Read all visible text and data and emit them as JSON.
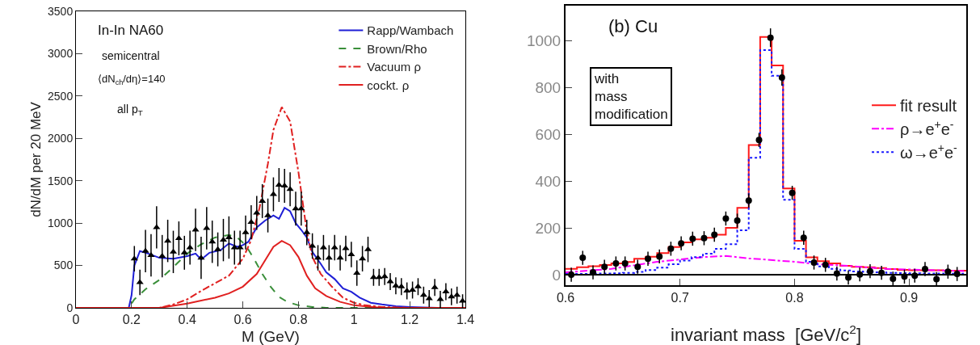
{
  "chart_data": [
    {
      "type": "line",
      "xlabel": "M (GeV)",
      "ylabel": "dN/dM per 20 MeV",
      "annotations": [
        "In-In NA60",
        "semicentral",
        "⟨dN$_{ch}$/dη⟩=140",
        "all p$_{T}$"
      ],
      "xlim": [
        0,
        1.4
      ],
      "ylim": [
        0,
        3500
      ],
      "xticks": [
        0,
        0.2,
        0.4,
        0.6,
        0.8,
        1,
        1.2,
        1.4
      ],
      "yticks": [
        0,
        500,
        1000,
        1500,
        2000,
        2500,
        3000,
        3500
      ],
      "grid": false,
      "legend": "top right",
      "series": [
        {
          "name": "Rapp/Wambach",
          "color": "#1f1fd6",
          "line_style": "solid",
          "x": [
            0,
            0.19,
            0.2,
            0.21,
            0.23,
            0.26,
            0.3,
            0.35,
            0.4,
            0.43,
            0.45,
            0.48,
            0.52,
            0.55,
            0.58,
            0.6,
            0.62,
            0.65,
            0.68,
            0.71,
            0.73,
            0.75,
            0.77,
            0.79,
            0.81,
            0.83,
            0.85,
            0.88,
            0.9,
            0.93,
            0.96,
            0.99,
            1.02,
            1.06,
            1.1,
            1.15,
            1.2,
            1.3,
            1.4
          ],
          "values": [
            0,
            0,
            150,
            500,
            670,
            640,
            590,
            580,
            610,
            640,
            570,
            650,
            680,
            760,
            720,
            740,
            780,
            950,
            1030,
            1090,
            1050,
            1180,
            1140,
            1000,
            920,
            830,
            660,
            520,
            420,
            340,
            230,
            190,
            120,
            60,
            40,
            20,
            10,
            0,
            0
          ]
        },
        {
          "name": "Brown/Rho",
          "color": "#3a8f3a",
          "line_style": "dashed",
          "x": [
            0,
            0.19,
            0.21,
            0.25,
            0.3,
            0.35,
            0.4,
            0.45,
            0.5,
            0.55,
            0.58,
            0.61,
            0.64,
            0.67,
            0.7,
            0.73,
            0.76,
            0.8,
            0.85,
            0.9,
            1.4
          ],
          "values": [
            0,
            0,
            100,
            220,
            330,
            480,
            640,
            750,
            830,
            860,
            830,
            740,
            580,
            400,
            250,
            130,
            70,
            30,
            10,
            0,
            0
          ]
        },
        {
          "name": "Vacuum ρ",
          "color": "#e02020",
          "line_style": "dashdot",
          "x": [
            0,
            0.3,
            0.35,
            0.4,
            0.45,
            0.5,
            0.55,
            0.6,
            0.63,
            0.66,
            0.69,
            0.71,
            0.74,
            0.77,
            0.8,
            0.83,
            0.85,
            0.88,
            0.92,
            0.96,
            1.0,
            1.04,
            1.1,
            1.2,
            1.4
          ],
          "values": [
            0,
            0,
            40,
            100,
            200,
            290,
            380,
            580,
            800,
            1180,
            1700,
            2100,
            2370,
            2200,
            1600,
            900,
            600,
            400,
            250,
            120,
            60,
            30,
            10,
            0,
            0
          ]
        },
        {
          "name": "cockt. ρ",
          "color": "#e02020",
          "line_style": "solid",
          "x": [
            0,
            0.3,
            0.4,
            0.5,
            0.55,
            0.6,
            0.65,
            0.68,
            0.71,
            0.74,
            0.77,
            0.8,
            0.83,
            0.86,
            0.9,
            0.95,
            1.0,
            1.1,
            1.2,
            1.4
          ],
          "values": [
            0,
            0,
            50,
            120,
            170,
            250,
            400,
            560,
            720,
            790,
            740,
            600,
            380,
            230,
            140,
            70,
            30,
            0,
            0,
            0
          ]
        },
        {
          "type": "scatter",
          "color": "#000000",
          "marker": "triangle",
          "x": [
            0.21,
            0.23,
            0.25,
            0.27,
            0.29,
            0.31,
            0.33,
            0.35,
            0.37,
            0.39,
            0.41,
            0.43,
            0.45,
            0.47,
            0.49,
            0.51,
            0.53,
            0.55,
            0.57,
            0.59,
            0.61,
            0.63,
            0.65,
            0.67,
            0.69,
            0.71,
            0.73,
            0.75,
            0.77,
            0.79,
            0.81,
            0.83,
            0.85,
            0.87,
            0.89,
            0.91,
            0.93,
            0.95,
            0.97,
            0.99,
            1.01,
            1.03,
            1.05,
            1.07,
            1.09,
            1.11,
            1.13,
            1.15,
            1.17,
            1.19,
            1.21,
            1.23,
            1.25,
            1.27,
            1.29,
            1.31,
            1.33,
            1.35,
            1.37,
            1.39
          ],
          "values": [
            580,
            300,
            670,
            620,
            950,
            610,
            790,
            660,
            820,
            650,
            710,
            920,
            590,
            940,
            780,
            690,
            800,
            830,
            710,
            710,
            890,
            1010,
            1120,
            1260,
            1090,
            1340,
            1450,
            1440,
            1400,
            1170,
            1170,
            890,
            730,
            590,
            710,
            590,
            710,
            590,
            700,
            630,
            410,
            580,
            690,
            360,
            360,
            370,
            310,
            260,
            250,
            200,
            210,
            250,
            150,
            110,
            240,
            100,
            190,
            130,
            150,
            80
          ],
          "errors": [
            150,
            150,
            250,
            250,
            250,
            250,
            250,
            250,
            200,
            200,
            200,
            250,
            250,
            250,
            250,
            200,
            250,
            250,
            200,
            200,
            200,
            200,
            200,
            200,
            200,
            200,
            200,
            200,
            200,
            200,
            200,
            150,
            150,
            150,
            150,
            150,
            150,
            150,
            150,
            150,
            150,
            150,
            150,
            100,
            100,
            100,
            100,
            100,
            100,
            100,
            100,
            100,
            100,
            100,
            100,
            100,
            100,
            100,
            100,
            80
          ]
        }
      ]
    },
    {
      "type": "step",
      "xlabel": "invariant mass  [GeV/c$^{2}$]",
      "annotations": [
        "(b) Cu",
        "with mass modification"
      ],
      "xlim": [
        0.6,
        0.95
      ],
      "ylim": [
        -45,
        1150
      ],
      "xticks": [
        0.6,
        0.7,
        0.8,
        0.9
      ],
      "yticks": [
        0,
        200,
        400,
        600,
        800,
        1000
      ],
      "grid": false,
      "legend": "right",
      "ref_lines": [
        {
          "axis": "y",
          "value": 0,
          "color": "#000000"
        }
      ],
      "series": [
        {
          "name": "fit result",
          "color": "#ff1a1a",
          "line_style": "solid",
          "x": [
            0.6,
            0.61,
            0.62,
            0.63,
            0.64,
            0.65,
            0.66,
            0.67,
            0.68,
            0.69,
            0.7,
            0.71,
            0.72,
            0.73,
            0.74,
            0.75,
            0.76,
            0.77,
            0.78,
            0.79,
            0.8,
            0.81,
            0.82,
            0.83,
            0.84,
            0.85,
            0.86,
            0.87,
            0.88,
            0.89,
            0.9,
            0.91,
            0.92,
            0.93,
            0.94,
            0.95
          ],
          "values": [
            25,
            32,
            36,
            41,
            48,
            54,
            68,
            77,
            92,
            118,
            138,
            151,
            158,
            171,
            200,
            286,
            554,
            1016,
            894,
            369,
            145,
            74,
            58,
            48,
            38,
            34,
            32,
            28,
            24,
            21,
            19,
            19,
            19,
            17,
            17,
            17
          ]
        },
        {
          "type": "line",
          "name": "ρ→e$^{+}$e$^{-}$",
          "color": "#ff00ff",
          "line_style": "dashdot",
          "x": [
            0.6,
            0.64,
            0.68,
            0.72,
            0.74,
            0.76,
            0.8,
            0.82,
            0.84,
            0.88,
            0.95
          ],
          "values": [
            10,
            25,
            55,
            75,
            80,
            70,
            55,
            45,
            40,
            25,
            15
          ]
        },
        {
          "name": "ω→e$^{+}$e$^{-}$",
          "color": "#1a1aff",
          "line_style": "dotted",
          "x": [
            0.6,
            0.61,
            0.62,
            0.63,
            0.64,
            0.65,
            0.66,
            0.67,
            0.68,
            0.69,
            0.7,
            0.71,
            0.72,
            0.73,
            0.74,
            0.75,
            0.76,
            0.77,
            0.78,
            0.79,
            0.8,
            0.81,
            0.82,
            0.83,
            0.84,
            0.85,
            0.86,
            0.87,
            0.88,
            0.89,
            0.9,
            0.91,
            0.92,
            0.93,
            0.94,
            0.95
          ],
          "values": [
            3,
            3,
            4,
            5,
            6,
            8,
            12,
            20,
            30,
            45,
            60,
            75,
            90,
            110,
            130,
            190,
            500,
            960,
            850,
            320,
            110,
            55,
            35,
            25,
            18,
            14,
            12,
            10,
            8,
            7,
            6,
            5,
            5,
            4,
            4,
            4
          ]
        },
        {
          "type": "scatter",
          "color": "#000000",
          "marker": "circle",
          "x": [
            0.605,
            0.615,
            0.624,
            0.634,
            0.644,
            0.652,
            0.663,
            0.672,
            0.682,
            0.692,
            0.701,
            0.711,
            0.721,
            0.73,
            0.74,
            0.75,
            0.76,
            0.769,
            0.779,
            0.789,
            0.798,
            0.808,
            0.817,
            0.827,
            0.837,
            0.847,
            0.857,
            0.866,
            0.876,
            0.886,
            0.896,
            0.905,
            0.914,
            0.924,
            0.934,
            0.942
          ],
          "values": [
            0,
            72,
            10,
            34,
            48,
            48,
            34,
            68,
            78,
            111,
            134,
            154,
            156,
            171,
            240,
            231,
            317,
            576,
            1013,
            843,
            350,
            158,
            52,
            42,
            5,
            -12,
            1,
            15,
            8,
            -17,
            -8,
            -4,
            24,
            -19,
            13,
            3
          ],
          "errors": [
            30,
            30,
            30,
            30,
            30,
            30,
            30,
            30,
            30,
            30,
            30,
            30,
            30,
            30,
            30,
            30,
            30,
            30,
            40,
            35,
            30,
            30,
            30,
            30,
            30,
            30,
            30,
            30,
            30,
            30,
            30,
            30,
            30,
            30,
            30,
            30
          ]
        }
      ]
    }
  ]
}
